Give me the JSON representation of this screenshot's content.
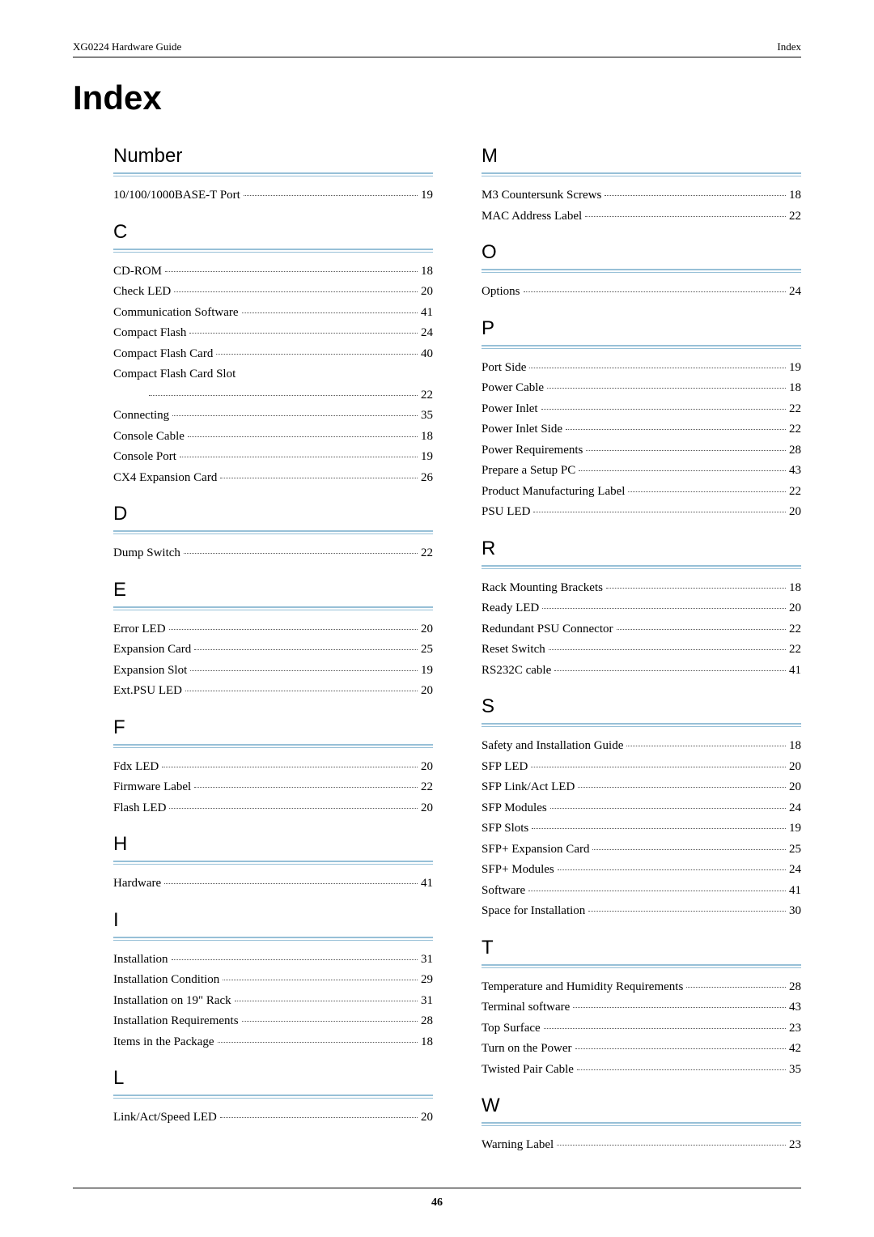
{
  "header": {
    "left": "XG0224 Hardware Guide",
    "right": "Index"
  },
  "title": "Index",
  "footer_page": "46",
  "columns": {
    "left": [
      {
        "letter": "Number",
        "entries": [
          {
            "label": "10/100/1000BASE-T Port",
            "page": "19"
          }
        ]
      },
      {
        "letter": "C",
        "entries": [
          {
            "label": "CD-ROM",
            "page": "18"
          },
          {
            "label": "Check LED",
            "page": "20"
          },
          {
            "label": "Communication Software",
            "page": "41"
          },
          {
            "label": "Compact Flash",
            "page": "24"
          },
          {
            "label": "Compact Flash Card",
            "page": "40"
          },
          {
            "label": "Compact Flash Card Slot",
            "noleader": true
          },
          {
            "label": "",
            "page": "22",
            "indent": true
          },
          {
            "label": "Connecting",
            "page": "35"
          },
          {
            "label": "Console Cable",
            "page": "18"
          },
          {
            "label": "Console Port",
            "page": "19"
          },
          {
            "label": "CX4 Expansion Card",
            "page": "26"
          }
        ]
      },
      {
        "letter": "D",
        "entries": [
          {
            "label": "Dump Switch",
            "page": "22"
          }
        ]
      },
      {
        "letter": "E",
        "entries": [
          {
            "label": "Error LED",
            "page": "20"
          },
          {
            "label": "Expansion Card",
            "page": "25"
          },
          {
            "label": "Expansion Slot",
            "page": "19"
          },
          {
            "label": "Ext.PSU LED",
            "page": "20"
          }
        ]
      },
      {
        "letter": "F",
        "entries": [
          {
            "label": "Fdx LED",
            "page": "20"
          },
          {
            "label": "Firmware Label",
            "page": "22"
          },
          {
            "label": "Flash LED",
            "page": "20"
          }
        ]
      },
      {
        "letter": "H",
        "entries": [
          {
            "label": "Hardware",
            "page": "41"
          }
        ]
      },
      {
        "letter": "I",
        "entries": [
          {
            "label": "Installation",
            "page": "31"
          },
          {
            "label": "Installation Condition",
            "page": "29"
          },
          {
            "label": "Installation on 19\" Rack",
            "page": "31"
          },
          {
            "label": "Installation Requirements",
            "page": "28"
          },
          {
            "label": "Items in the Package",
            "page": "18"
          }
        ]
      },
      {
        "letter": "L",
        "entries": [
          {
            "label": "Link/Act/Speed LED",
            "page": "20"
          }
        ]
      }
    ],
    "right": [
      {
        "letter": "M",
        "entries": [
          {
            "label": "M3 Countersunk Screws",
            "page": "18"
          },
          {
            "label": "MAC Address Label",
            "page": "22"
          }
        ]
      },
      {
        "letter": "O",
        "entries": [
          {
            "label": "Options",
            "page": "24"
          }
        ]
      },
      {
        "letter": "P",
        "entries": [
          {
            "label": "Port Side",
            "page": "19"
          },
          {
            "label": "Power Cable",
            "page": "18"
          },
          {
            "label": "Power Inlet",
            "page": "22"
          },
          {
            "label": "Power Inlet Side",
            "page": "22"
          },
          {
            "label": "Power Requirements",
            "page": "28"
          },
          {
            "label": "Prepare a Setup PC",
            "page": "43"
          },
          {
            "label": "Product Manufacturing Label",
            "page": "22"
          },
          {
            "label": "PSU LED",
            "page": "20"
          }
        ]
      },
      {
        "letter": "R",
        "entries": [
          {
            "label": "Rack Mounting Brackets",
            "page": "18"
          },
          {
            "label": "Ready LED",
            "page": "20"
          },
          {
            "label": "Redundant PSU Connector",
            "page": "22"
          },
          {
            "label": "Reset Switch",
            "page": "22"
          },
          {
            "label": "RS232C cable",
            "page": "41"
          }
        ]
      },
      {
        "letter": "S",
        "entries": [
          {
            "label": "Safety and Installation Guide",
            "page": "18"
          },
          {
            "label": "SFP LED",
            "page": "20"
          },
          {
            "label": "SFP Link/Act LED",
            "page": "20"
          },
          {
            "label": "SFP Modules",
            "page": "24"
          },
          {
            "label": "SFP Slots",
            "page": "19"
          },
          {
            "label": "SFP+ Expansion Card",
            "page": "25"
          },
          {
            "label": "SFP+ Modules",
            "page": "24"
          },
          {
            "label": "Software",
            "page": "41"
          },
          {
            "label": "Space for Installation",
            "page": "30"
          }
        ]
      },
      {
        "letter": "T",
        "entries": [
          {
            "label": "Temperature and Humidity Requirements",
            "page": "28"
          },
          {
            "label": "Terminal software",
            "page": "43"
          },
          {
            "label": "Top Surface",
            "page": "23"
          },
          {
            "label": "Turn on the Power",
            "page": "42"
          },
          {
            "label": "Twisted Pair Cable",
            "page": "35"
          }
        ]
      },
      {
        "letter": "W",
        "entries": [
          {
            "label": "Warning Label",
            "page": "23"
          }
        ]
      }
    ]
  }
}
